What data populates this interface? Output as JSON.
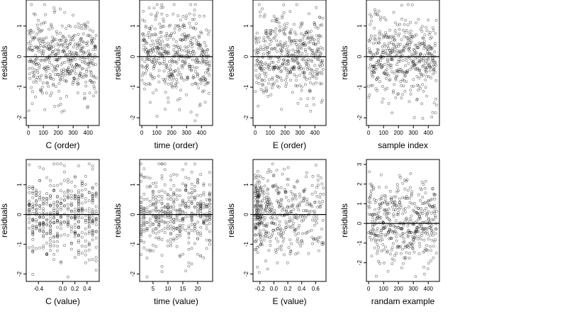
{
  "chart_data": [
    {
      "type": "scatter",
      "xlabel": "C (order)",
      "ylabel": "residuals",
      "xlim": [
        -15,
        475
      ],
      "ylim": [
        -2.25,
        1.85
      ],
      "xticks": [
        "0",
        "100",
        "200",
        "300",
        "400"
      ],
      "xtick_values": [
        0,
        100,
        200,
        300,
        400
      ],
      "yticks": [
        "-2",
        "-1",
        "0",
        "1"
      ],
      "ytick_values": [
        -2,
        -1,
        0,
        1
      ],
      "reference_line_y": 0,
      "n_points": 450,
      "points": {
        "x_min": 0,
        "x_max": 455,
        "x_kind": "index",
        "y_mean": 0,
        "y_sd": 0.7,
        "y_min": -2.1,
        "y_max": 1.7
      }
    },
    {
      "type": "scatter",
      "xlabel": "time (order)",
      "ylabel": "residuals",
      "xlim": [
        -15,
        475
      ],
      "ylim": [
        -2.25,
        1.85
      ],
      "xticks": [
        "0",
        "100",
        "200",
        "300",
        "400"
      ],
      "xtick_values": [
        0,
        100,
        200,
        300,
        400
      ],
      "yticks": [
        "-2",
        "-1",
        "0",
        "1"
      ],
      "ytick_values": [
        -2,
        -1,
        0,
        1
      ],
      "reference_line_y": 0,
      "n_points": 450,
      "points": {
        "x_min": 0,
        "x_max": 455,
        "x_kind": "index",
        "y_mean": 0,
        "y_sd": 0.7,
        "y_min": -2.1,
        "y_max": 1.7
      }
    },
    {
      "type": "scatter",
      "xlabel": "E (order)",
      "ylabel": "residuals",
      "xlim": [
        -15,
        475
      ],
      "ylim": [
        -2.25,
        1.85
      ],
      "xticks": [
        "0",
        "100",
        "200",
        "300",
        "400"
      ],
      "xtick_values": [
        0,
        100,
        200,
        300,
        400
      ],
      "yticks": [
        "-2",
        "-1",
        "0",
        "1"
      ],
      "ytick_values": [
        -2,
        -1,
        0,
        1
      ],
      "reference_line_y": 0,
      "n_points": 450,
      "points": {
        "x_min": 0,
        "x_max": 455,
        "x_kind": "index",
        "y_mean": 0,
        "y_sd": 0.7,
        "y_min": -2.1,
        "y_max": 1.7
      }
    },
    {
      "type": "scatter",
      "xlabel": "sample index",
      "ylabel": "residuals",
      "xlim": [
        -15,
        475
      ],
      "ylim": [
        -2.25,
        1.85
      ],
      "xticks": [
        "0",
        "100",
        "200",
        "300",
        "400"
      ],
      "xtick_values": [
        0,
        100,
        200,
        300,
        400
      ],
      "yticks": [
        "-2",
        "-1",
        "0",
        "1"
      ],
      "ytick_values": [
        -2,
        -1,
        0,
        1
      ],
      "reference_line_y": 0,
      "n_points": 450,
      "points": {
        "x_min": 0,
        "x_max": 455,
        "x_kind": "index",
        "y_mean": 0,
        "y_sd": 0.7,
        "y_min": -2.1,
        "y_max": 1.7
      }
    },
    {
      "type": "scatter",
      "xlabel": "C (value)",
      "ylabel": "residuals",
      "xlim": [
        -0.6,
        0.6
      ],
      "ylim": [
        -2.25,
        1.85
      ],
      "xticks": [
        "-0.4",
        "0.0",
        "0.2",
        "0.4"
      ],
      "xtick_values": [
        -0.4,
        0.0,
        0.2,
        0.4
      ],
      "yticks": [
        "-2",
        "-1",
        "0",
        "1"
      ],
      "ytick_values": [
        -2,
        -1,
        0,
        1
      ],
      "reference_line_y": 0,
      "n_points": 450,
      "points": {
        "x_min": -0.55,
        "x_max": 0.55,
        "x_kind": "discrete",
        "x_levels": 20,
        "y_mean": 0,
        "y_sd": 0.7,
        "y_min": -2.1,
        "y_max": 1.7
      }
    },
    {
      "type": "scatter",
      "xlabel": "time (value)",
      "ylabel": "residuals",
      "xlim": [
        0.5,
        25
      ],
      "ylim": [
        -2.25,
        1.85
      ],
      "xticks": [
        "5",
        "10",
        "15",
        "20"
      ],
      "xtick_values": [
        5,
        10,
        15,
        20
      ],
      "yticks": [
        "-2",
        "-1",
        "0",
        "1"
      ],
      "ytick_values": [
        -2,
        -1,
        0,
        1
      ],
      "reference_line_y": 0,
      "n_points": 450,
      "points": {
        "x_min": 1,
        "x_max": 24,
        "x_kind": "discrete",
        "x_levels": 24,
        "y_mean": 0,
        "y_sd": 0.7,
        "y_min": -2.1,
        "y_max": 1.7
      }
    },
    {
      "type": "scatter",
      "xlabel": "E (value)",
      "ylabel": "residuals",
      "xlim": [
        -0.3,
        0.75
      ],
      "ylim": [
        -2.25,
        1.85
      ],
      "xticks": [
        "-0.2",
        "0.0",
        "0.2",
        "0.4",
        "0.6"
      ],
      "xtick_values": [
        -0.2,
        0.0,
        0.2,
        0.4,
        0.6
      ],
      "yticks": [
        "-2",
        "-1",
        "0",
        "1"
      ],
      "ytick_values": [
        -2,
        -1,
        0,
        1
      ],
      "reference_line_y": 0,
      "n_points": 450,
      "points": {
        "x_min": -0.27,
        "x_max": 0.72,
        "x_kind": "skewed",
        "y_mean": 0,
        "y_sd": 0.7,
        "y_min": -2.1,
        "y_max": 1.7
      }
    },
    {
      "type": "scatter",
      "xlabel": "randam example",
      "ylabel": "residuals",
      "xlim": [
        -15,
        475
      ],
      "ylim": [
        -2.95,
        3.25
      ],
      "xticks": [
        "0",
        "100",
        "200",
        "300",
        "400"
      ],
      "xtick_values": [
        0,
        100,
        200,
        300,
        400
      ],
      "yticks": [
        "-2",
        "-1",
        "0",
        "1",
        "2",
        "3"
      ],
      "ytick_values": [
        -2,
        -1,
        0,
        1,
        2,
        3
      ],
      "reference_line_y": 0,
      "n_points": 450,
      "points": {
        "x_min": 0,
        "x_max": 455,
        "x_kind": "index",
        "y_mean": 0,
        "y_sd": 1.0,
        "y_min": -2.7,
        "y_max": 3.0
      }
    }
  ]
}
